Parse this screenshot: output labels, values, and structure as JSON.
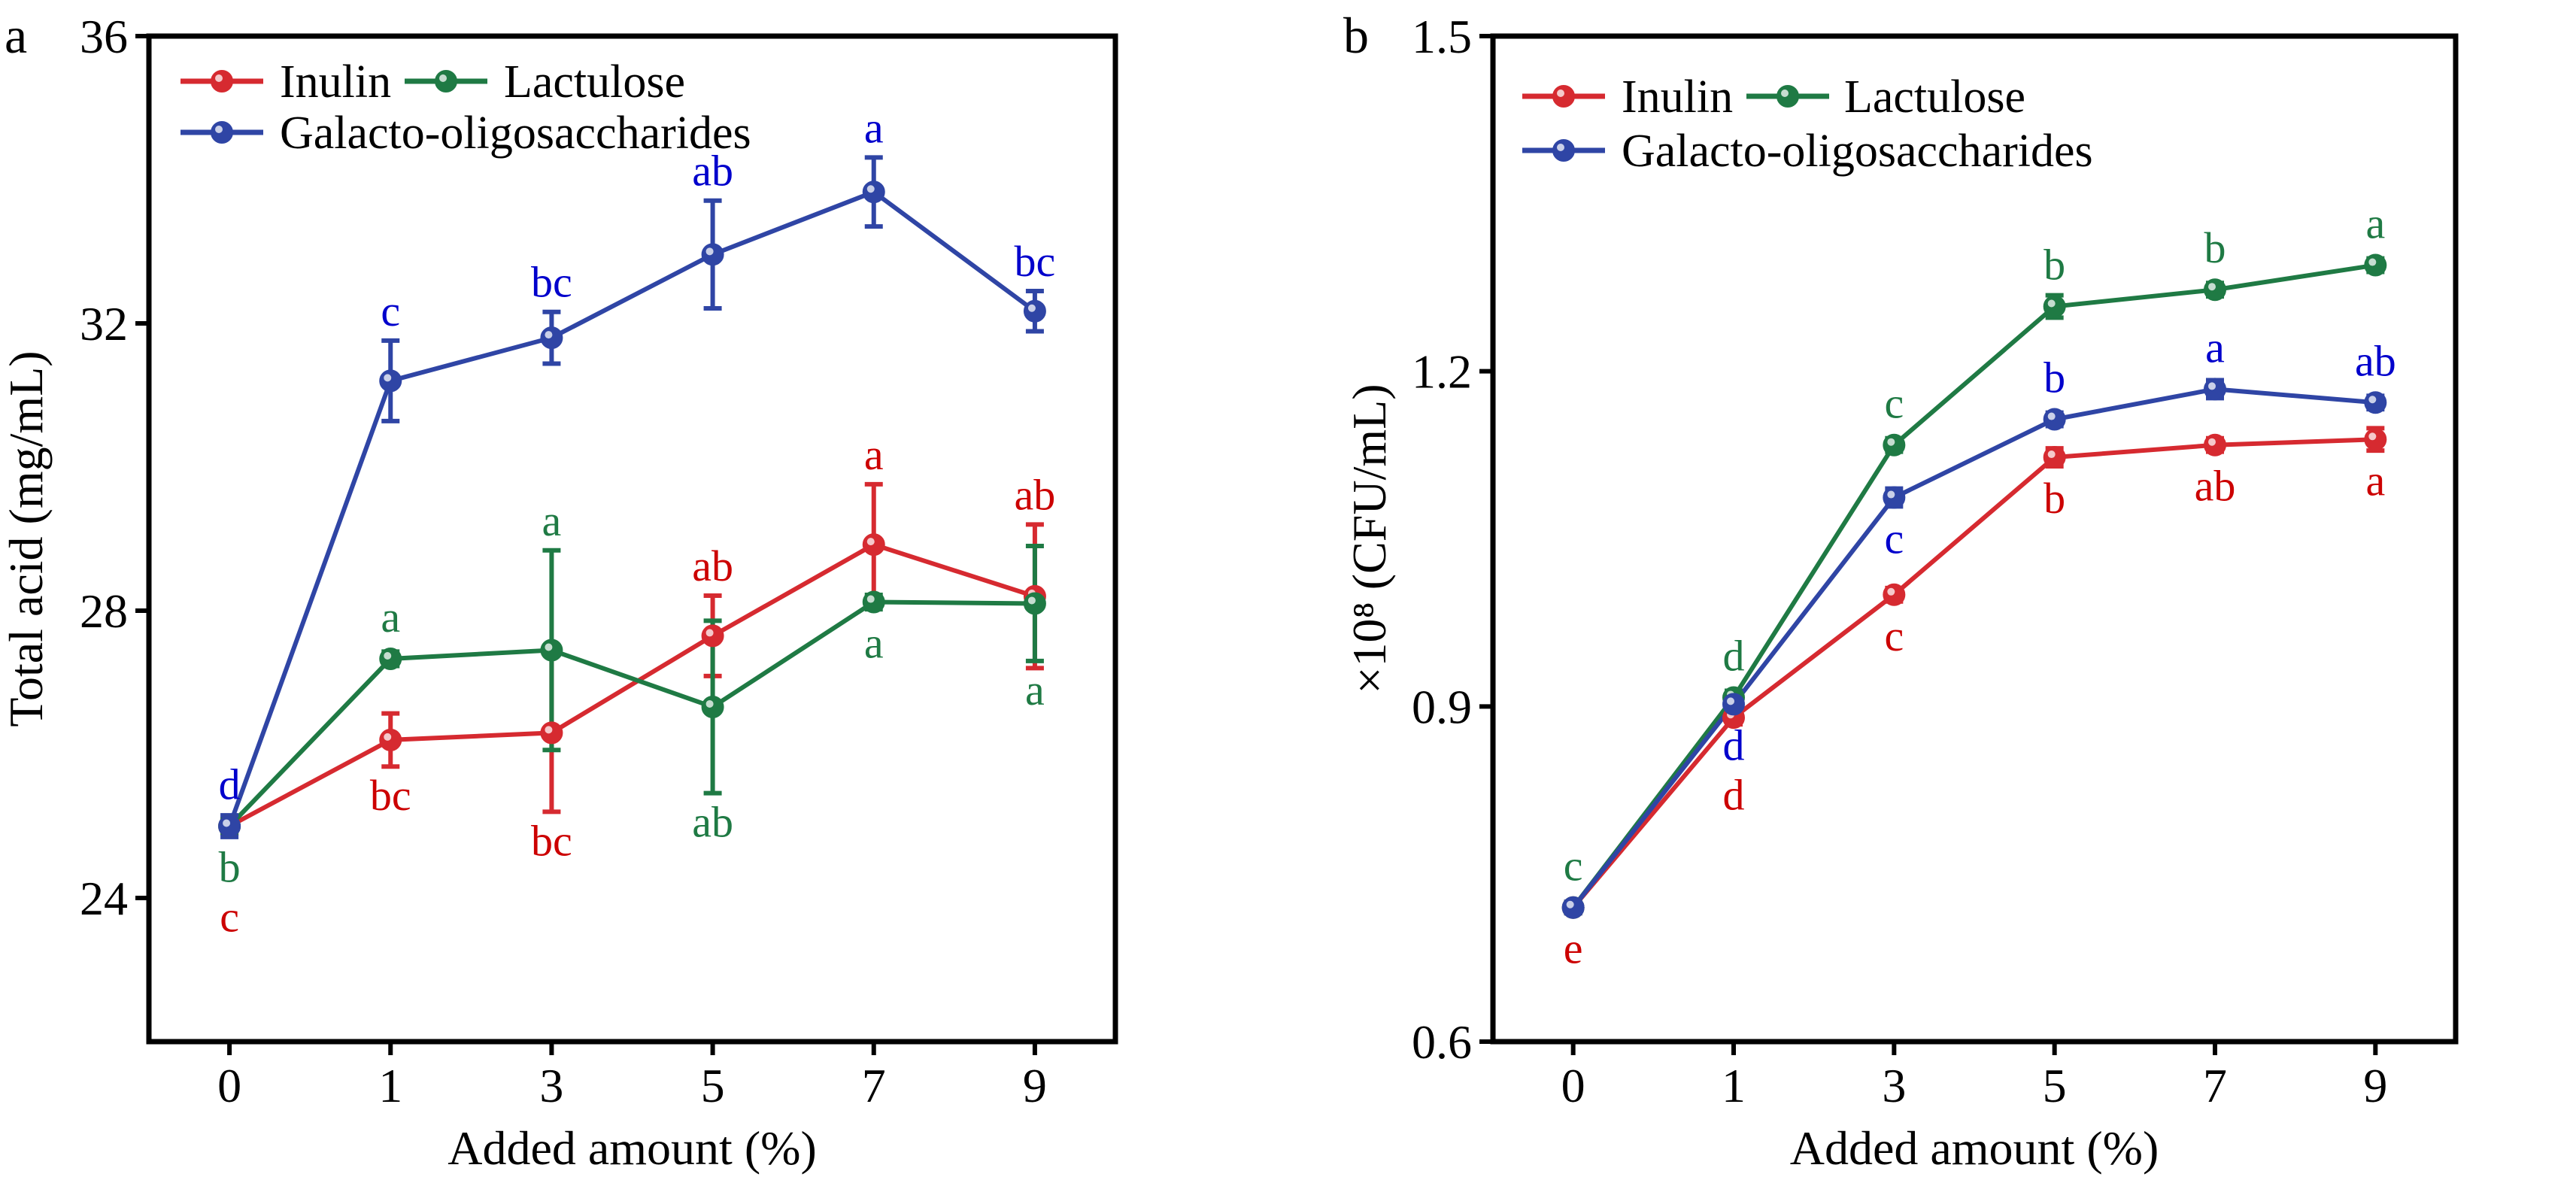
{
  "chart_data": [
    {
      "panel_label": "a",
      "type": "line",
      "xlabel": "Added amount (%)",
      "ylabel": "Total acid (mg/mL)",
      "categories": [
        "0",
        "1",
        "3",
        "5",
        "7",
        "9"
      ],
      "ylim": [
        22,
        36
      ],
      "yticks": [
        24,
        28,
        32,
        36
      ],
      "grid": false,
      "legend_placement": "top-left",
      "series": [
        {
          "name": "Inulin",
          "color": "#d62a30",
          "label_color": "#cc0000",
          "values": [
            25.0,
            26.2,
            26.3,
            27.65,
            28.92,
            28.2
          ],
          "errors": [
            0.1,
            0.37,
            1.1,
            0.56,
            0.84,
            1.0
          ],
          "letters": [
            "c",
            "bc",
            "bc",
            "ab",
            "a",
            "ab"
          ],
          "letter_side": [
            "below",
            "below",
            "below",
            "above",
            "above",
            "above"
          ]
        },
        {
          "name": "Lactulose",
          "color": "#1f7a44",
          "label_color": "#1f7a44",
          "values": [
            25.0,
            27.33,
            27.45,
            26.66,
            28.12,
            28.1
          ],
          "errors": [
            0.1,
            0.1,
            1.39,
            1.2,
            0.1,
            0.8
          ],
          "letters": [
            "b",
            "a",
            "a",
            "ab",
            "a",
            "a"
          ],
          "letter_side": [
            "below",
            "above",
            "above",
            "below",
            "below",
            "below"
          ]
        },
        {
          "name": "Galacto-oligosaccharides",
          "color": "#2f45a5",
          "label_color": "#0000cc",
          "values": [
            25.0,
            31.2,
            31.8,
            32.96,
            33.83,
            32.17
          ],
          "errors": [
            0.15,
            0.56,
            0.36,
            0.75,
            0.48,
            0.28
          ],
          "letters": [
            "d",
            "c",
            "bc",
            "ab",
            "a",
            "bc"
          ],
          "letter_side": [
            "above",
            "above",
            "above",
            "above",
            "above",
            "above"
          ]
        }
      ]
    },
    {
      "panel_label": "b",
      "type": "line",
      "xlabel": "Added amount (%)",
      "ylabel": "×10⁸ (CFU/mL)",
      "categories": [
        "0",
        "1",
        "3",
        "5",
        "7",
        "9"
      ],
      "ylim": [
        0.6,
        1.5
      ],
      "yticks": [
        0.6,
        0.9,
        1.2,
        1.5
      ],
      "grid": false,
      "legend_placement": "top-left",
      "series": [
        {
          "name": "Inulin",
          "color": "#d62a30",
          "label_color": "#cc0000",
          "values": [
            0.72,
            0.89,
            1.0,
            1.123,
            1.134,
            1.139
          ],
          "errors": [
            0.005,
            0.006,
            0.006,
            0.008,
            0.006,
            0.01
          ],
          "letters": [
            "e",
            "d",
            "c",
            "b",
            "ab",
            "a"
          ],
          "letter_side": [
            "below",
            "below",
            "below",
            "below",
            "below",
            "below"
          ]
        },
        {
          "name": "Lactulose",
          "color": "#1f7a44",
          "label_color": "#1f7a44",
          "values": [
            0.72,
            0.908,
            1.134,
            1.258,
            1.273,
            1.295
          ],
          "errors": [
            0.005,
            0.006,
            0.006,
            0.01,
            0.006,
            0.006
          ],
          "letters": [
            "c",
            "d",
            "c",
            "b",
            "b",
            "a"
          ],
          "letter_side": [
            "above",
            "above",
            "above",
            "above",
            "above",
            "above"
          ]
        },
        {
          "name": "Galacto-oligosaccharides",
          "color": "#2f45a5",
          "label_color": "#0000cc",
          "values": [
            0.72,
            0.902,
            1.087,
            1.157,
            1.184,
            1.172
          ],
          "errors": [
            0.005,
            0.006,
            0.008,
            0.006,
            0.008,
            0.006
          ],
          "letters": [
            "",
            "d",
            "c",
            "b",
            "a",
            "ab"
          ],
          "letter_side": [
            "",
            "below",
            "below",
            "above",
            "above",
            "above"
          ]
        }
      ]
    }
  ]
}
